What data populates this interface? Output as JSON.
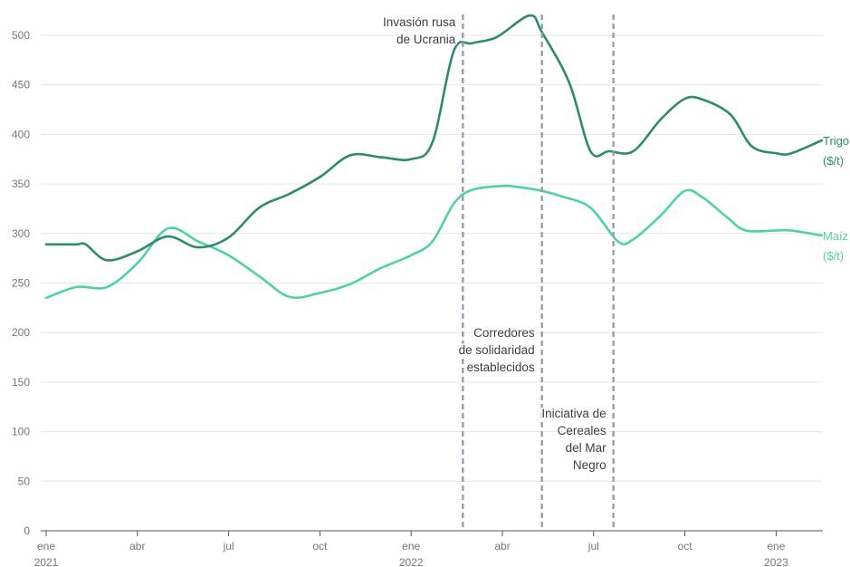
{
  "chart_data": {
    "type": "line",
    "y_ticks": [
      "0",
      "50",
      "100",
      "150",
      "200",
      "250",
      "300",
      "350",
      "400",
      "450",
      "500"
    ],
    "ylim": [
      0,
      520
    ],
    "x_ticks": [
      {
        "month": 0,
        "line1": "ene",
        "line2": "2021"
      },
      {
        "month": 3,
        "line1": "abr",
        "line2": ""
      },
      {
        "month": 6,
        "line1": "jul",
        "line2": ""
      },
      {
        "month": 9,
        "line1": "oct",
        "line2": ""
      },
      {
        "month": 12,
        "line1": "ene",
        "line2": "2022"
      },
      {
        "month": 15,
        "line1": "abr",
        "line2": ""
      },
      {
        "month": 18,
        "line1": "jul",
        "line2": ""
      },
      {
        "month": 21,
        "line1": "oct",
        "line2": ""
      },
      {
        "month": 24,
        "line1": "ene",
        "line2": "2023"
      }
    ],
    "xlim": [
      0,
      25.5
    ],
    "series": [
      {
        "name_line1": "Trigo",
        "name_line2": "($/t)",
        "color": "#2e8b6e",
        "points": [
          [
            0,
            289
          ],
          [
            1,
            289
          ],
          [
            1.3,
            289
          ],
          [
            2,
            273
          ],
          [
            3,
            282
          ],
          [
            4,
            297
          ],
          [
            5,
            286
          ],
          [
            6,
            296
          ],
          [
            7,
            326
          ],
          [
            8,
            340
          ],
          [
            9,
            357
          ],
          [
            10,
            379
          ],
          [
            11,
            377
          ],
          [
            12,
            375
          ],
          [
            12.7,
            392
          ],
          [
            13.4,
            484
          ],
          [
            14,
            492
          ],
          [
            14.8,
            498
          ],
          [
            15.9,
            520
          ],
          [
            16.3,
            503
          ],
          [
            17.2,
            452
          ],
          [
            17.9,
            383
          ],
          [
            18.5,
            383
          ],
          [
            19.3,
            383
          ],
          [
            20.2,
            415
          ],
          [
            21,
            436
          ],
          [
            21.6,
            435
          ],
          [
            22.5,
            420
          ],
          [
            23.2,
            388
          ],
          [
            24,
            381
          ],
          [
            24.5,
            381
          ],
          [
            25.5,
            394
          ]
        ]
      },
      {
        "name_line1": "Maíz",
        "name_line2": "($/t)",
        "color": "#4fd1a5",
        "points": [
          [
            0,
            235
          ],
          [
            1,
            246
          ],
          [
            2,
            246
          ],
          [
            3,
            270
          ],
          [
            4,
            305
          ],
          [
            5,
            292
          ],
          [
            6,
            278
          ],
          [
            7,
            257
          ],
          [
            8,
            236
          ],
          [
            9,
            240
          ],
          [
            10,
            249
          ],
          [
            11,
            265
          ],
          [
            12,
            278
          ],
          [
            12.7,
            292
          ],
          [
            13.4,
            330
          ],
          [
            14,
            344
          ],
          [
            15,
            348
          ],
          [
            15.5,
            347
          ],
          [
            16.3,
            343
          ],
          [
            17,
            337
          ],
          [
            17.9,
            326
          ],
          [
            18.8,
            292
          ],
          [
            19.3,
            294
          ],
          [
            20.2,
            318
          ],
          [
            21,
            343
          ],
          [
            21.6,
            336
          ],
          [
            22.4,
            316
          ],
          [
            23,
            303
          ],
          [
            24,
            303
          ],
          [
            24.5,
            303
          ],
          [
            25.5,
            298
          ]
        ]
      }
    ],
    "events": [
      {
        "month": 13.7,
        "lines": [
          "Invasión rusa",
          "de Ucrania"
        ],
        "position": "top"
      },
      {
        "month": 16.3,
        "lines": [
          "Corredores",
          "de solidaridad",
          "establecidos"
        ],
        "position": "middle"
      },
      {
        "month": 18.65,
        "lines": [
          "Iniciativa de",
          "Cereales",
          "del Mar",
          "Negro"
        ],
        "position": "lower"
      }
    ],
    "grid": true
  }
}
